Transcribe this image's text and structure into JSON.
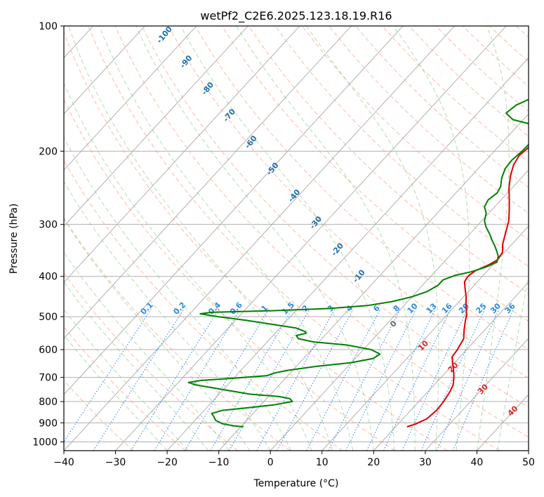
{
  "chart_data": {
    "type": "line",
    "subtype": "skew-t log-p diagram",
    "title": "wetPf2_C2E6.2025.123.18.19.R16",
    "xlabel": "Temperature (°C)",
    "ylabel": "Pressure (hPa)",
    "xlim": [
      -40,
      50
    ],
    "ylim": [
      1050,
      100
    ],
    "y_scale": "log",
    "grid": true,
    "x_ticks": [
      -40,
      -30,
      -20,
      -10,
      0,
      10,
      20,
      30,
      40,
      50
    ],
    "y_ticks": [
      100,
      200,
      300,
      400,
      500,
      600,
      700,
      800,
      900,
      1000
    ],
    "series": [
      {
        "color": "#e00000",
        "points": [
          [
            22.2,
            920
          ],
          [
            23.4,
            905
          ],
          [
            24.6,
            880
          ],
          [
            25.0,
            840
          ],
          [
            24.8,
            800
          ],
          [
            24.3,
            760
          ],
          [
            23.7,
            730
          ],
          [
            22.5,
            700
          ],
          [
            21.0,
            670
          ],
          [
            19.6,
            645
          ],
          [
            18.5,
            625
          ],
          [
            18.2,
            600
          ],
          [
            17.5,
            565
          ],
          [
            16.1,
            540
          ],
          [
            14.8,
            515
          ],
          [
            13.8,
            495
          ],
          [
            12.0,
            470
          ],
          [
            10.5,
            448
          ],
          [
            9.0,
            430
          ],
          [
            7.5,
            412
          ],
          [
            7.2,
            400
          ],
          [
            7.6,
            388
          ],
          [
            9.2,
            375
          ],
          [
            10.0,
            365
          ],
          [
            9.6,
            350
          ],
          [
            8.2,
            335
          ],
          [
            6.8,
            315
          ],
          [
            5.3,
            295
          ],
          [
            3.5,
            278
          ],
          [
            1.6,
            262
          ],
          [
            -0.5,
            246
          ],
          [
            -2.4,
            230
          ],
          [
            -3.8,
            216
          ],
          [
            -4.4,
            205
          ],
          [
            -4.0,
            195
          ],
          [
            -3.5,
            185
          ],
          [
            -2.6,
            176
          ],
          [
            -1.4,
            170
          ],
          [
            -0.6,
            165
          ],
          [
            0.2,
            158
          ],
          [
            1.3,
            150
          ],
          [
            2.4,
            143
          ],
          [
            3.2,
            136
          ],
          [
            3.9,
            128
          ],
          [
            4.8,
            121
          ],
          [
            6.3,
            116
          ],
          [
            8.1,
            112
          ],
          [
            9.5,
            109
          ],
          [
            10.6,
            106
          ],
          [
            11.2,
            103
          ],
          [
            11.7,
            100
          ]
        ]
      },
      {
        "color": "#008000",
        "points": [
          [
            -9.5,
            920
          ],
          [
            -11.5,
            915
          ],
          [
            -14.0,
            905
          ],
          [
            -16.0,
            888
          ],
          [
            -17.0,
            870
          ],
          [
            -18.0,
            855
          ],
          [
            -16.5,
            840
          ],
          [
            -12.0,
            828
          ],
          [
            -7.5,
            815
          ],
          [
            -4.5,
            800
          ],
          [
            -5.5,
            787
          ],
          [
            -8.0,
            778
          ],
          [
            -14.0,
            768
          ],
          [
            -19.0,
            752
          ],
          [
            -26.0,
            730
          ],
          [
            -28.0,
            720
          ],
          [
            -26.0,
            712
          ],
          [
            -20.0,
            703
          ],
          [
            -14.0,
            693
          ],
          [
            -13.0,
            683
          ],
          [
            -11.0,
            673
          ],
          [
            -6.0,
            658
          ],
          [
            0.0,
            645
          ],
          [
            3.5,
            630
          ],
          [
            4.0,
            615
          ],
          [
            1.5,
            600
          ],
          [
            -4.0,
            585
          ],
          [
            -11.0,
            575
          ],
          [
            -14.5,
            565
          ],
          [
            -15.5,
            555
          ],
          [
            -14.0,
            548
          ],
          [
            -14.5,
            543
          ],
          [
            -17.0,
            532
          ],
          [
            -23.0,
            520
          ],
          [
            -28.0,
            510
          ],
          [
            -34.0,
            500
          ],
          [
            -38.0,
            492
          ],
          [
            -36.0,
            488
          ],
          [
            -25.0,
            484
          ],
          [
            -14.0,
            478
          ],
          [
            -7.0,
            470
          ],
          [
            -3.0,
            460
          ],
          [
            0.0,
            448
          ],
          [
            2.0,
            435
          ],
          [
            3.0,
            420
          ],
          [
            3.0,
            408
          ],
          [
            4.5,
            398
          ],
          [
            7.0,
            390
          ],
          [
            9.0,
            380
          ],
          [
            10.3,
            370
          ],
          [
            9.5,
            358
          ],
          [
            8.3,
            348
          ],
          [
            7.0,
            338
          ],
          [
            5.5,
            328
          ],
          [
            3.8,
            316
          ],
          [
            2.0,
            305
          ],
          [
            0.5,
            294
          ],
          [
            -0.5,
            282
          ],
          [
            -2.0,
            272
          ],
          [
            -2.5,
            262
          ],
          [
            -2.0,
            252
          ],
          [
            -2.5,
            243
          ],
          [
            -3.8,
            232
          ],
          [
            -4.8,
            220
          ],
          [
            -5.0,
            210
          ],
          [
            -4.6,
            200
          ],
          [
            -4.5,
            190
          ],
          [
            -4.8,
            180
          ],
          [
            -7.0,
            173
          ],
          [
            -12.0,
            168
          ],
          [
            -14.5,
            162
          ],
          [
            -14.0,
            155
          ],
          [
            -11.0,
            145
          ],
          [
            -9.5,
            135
          ],
          [
            -8.0,
            126
          ],
          [
            -6.0,
            118
          ],
          [
            -4.5,
            112
          ],
          [
            -3.0,
            106
          ],
          [
            -2.0,
            100
          ]
        ]
      }
    ],
    "dry_adiabat_labels": [
      "-100",
      "-90",
      "-80",
      "-70",
      "-60",
      "-50",
      "-40",
      "-30",
      "-20",
      "-10"
    ],
    "mixing_ratio_labels": [
      "0.1",
      "0.2",
      "0.4",
      "0.6",
      "1",
      "1.5",
      "2",
      "3",
      "4",
      "6",
      "8",
      "10",
      "13",
      "16",
      "20",
      "25",
      "30",
      "36"
    ],
    "moist_adiabat_labels": [
      "0",
      "10",
      "20",
      "30",
      "40"
    ],
    "colors": {
      "temperature": "#e00000",
      "dewpoint": "#008000",
      "grid": "#b0b0b0",
      "isotherm": "#a8a8a8",
      "dry_adiabat": "#f5a58a",
      "moist_adiabat": "#7fc47f",
      "mixing_ratio": "#3a8ee6",
      "dry_label": "#1f6fb0",
      "mixing_label": "#2b8ae0",
      "moist_label": "#d62728",
      "zero_label": "#666666"
    }
  }
}
